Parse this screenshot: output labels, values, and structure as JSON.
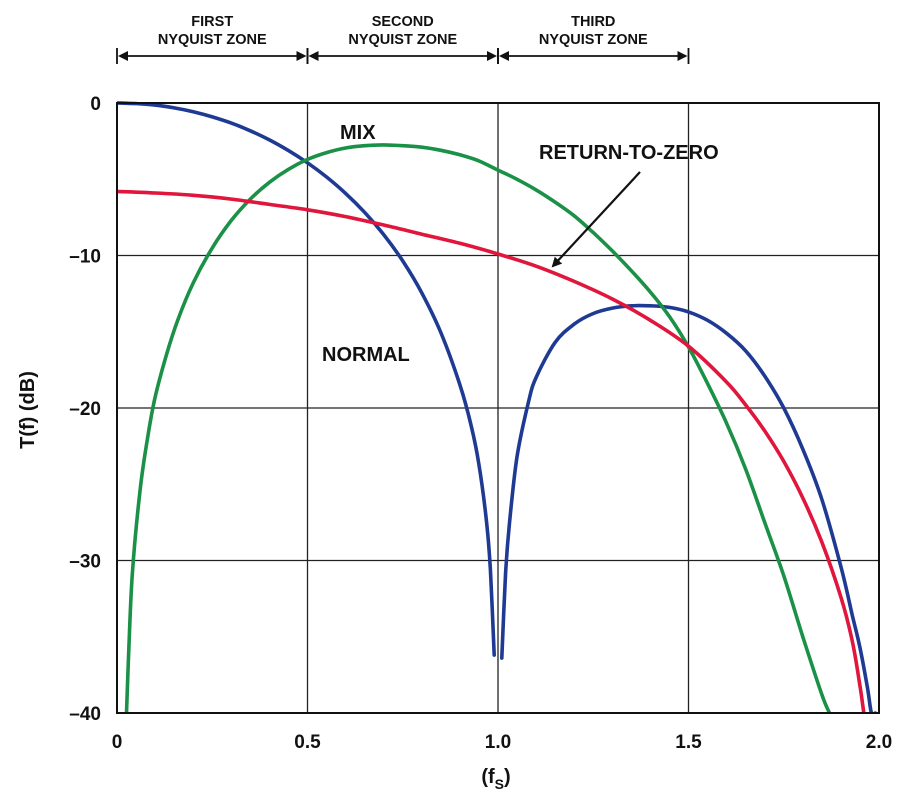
{
  "chart_data": {
    "type": "line",
    "xlabel": "(f",
    "xlabel_sub": "S",
    "xlabel_close": ")",
    "ylabel": "T(f) (dB)",
    "xlim": [
      0,
      2.0
    ],
    "ylim": [
      -40,
      0
    ],
    "grid": true,
    "x_ticks": [
      {
        "value": 0,
        "label": "0"
      },
      {
        "value": 0.5,
        "label": "0.5"
      },
      {
        "value": 1.0,
        "label": "1.0"
      },
      {
        "value": 1.5,
        "label": "1.5"
      },
      {
        "value": 2.0,
        "label": "2.0"
      }
    ],
    "y_ticks": [
      {
        "value": 0,
        "label": "0"
      },
      {
        "value": -10,
        "label": "–10"
      },
      {
        "value": -20,
        "label": "–20"
      },
      {
        "value": -30,
        "label": "–30"
      },
      {
        "value": -40,
        "label": "–40"
      }
    ],
    "zones": [
      {
        "line1": "FIRST",
        "line2": "NYQUIST ZONE",
        "from": 0,
        "to": 0.5
      },
      {
        "line1": "SECOND",
        "line2": "NYQUIST ZONE",
        "from": 0.5,
        "to": 1.0
      },
      {
        "line1": "THIRD",
        "line2": "NYQUIST ZONE",
        "from": 1.0,
        "to": 1.5
      }
    ],
    "series": [
      {
        "name": "NORMAL",
        "color": "#1f3a93",
        "segments": [
          {
            "x": [
              0,
              0.05,
              0.1,
              0.15,
              0.2,
              0.25,
              0.3,
              0.35,
              0.4,
              0.45,
              0.5,
              0.55,
              0.6,
              0.65,
              0.7,
              0.75,
              0.8,
              0.85,
              0.9,
              0.93,
              0.95,
              0.97,
              0.98,
              0.99
            ],
            "y": [
              0,
              -0.04,
              -0.14,
              -0.32,
              -0.58,
              -0.91,
              -1.32,
              -1.82,
              -2.42,
              -3.12,
              -3.92,
              -4.85,
              -5.93,
              -7.17,
              -8.63,
              -10.36,
              -12.45,
              -15.05,
              -18.48,
              -21.2,
              -23.7,
              -27.5,
              -30.6,
              -36.2
            ]
          },
          {
            "x": [
              1.01,
              1.02,
              1.03,
              1.05,
              1.08,
              1.1,
              1.15,
              1.2,
              1.25,
              1.3,
              1.35,
              1.4,
              1.45,
              1.5,
              1.55,
              1.6,
              1.65,
              1.7,
              1.75,
              1.8,
              1.85,
              1.9,
              1.93,
              1.95,
              1.97,
              1.98,
              1.99
            ],
            "y": [
              -36.4,
              -30.8,
              -27.6,
              -23.2,
              -19.6,
              -18.0,
              -15.7,
              -14.5,
              -13.8,
              -13.45,
              -13.3,
              -13.3,
              -13.4,
              -13.7,
              -14.25,
              -15.1,
              -16.25,
              -17.9,
              -20.0,
              -22.7,
              -26.0,
              -30.4,
              -33.6,
              -35.7,
              -38.4,
              -40.0,
              -40.0
            ]
          }
        ]
      },
      {
        "name": "MIX",
        "color": "#1a9146",
        "segments": [
          {
            "x": [
              0.025,
              0.03,
              0.04,
              0.06,
              0.08,
              0.1,
              0.13,
              0.16,
              0.2,
              0.25,
              0.3,
              0.35,
              0.4,
              0.45,
              0.5,
              0.55,
              0.6,
              0.65,
              0.7,
              0.75,
              0.8,
              0.85,
              0.9,
              0.95,
              1.0,
              1.05,
              1.1,
              1.15,
              1.2,
              1.25,
              1.3,
              1.35,
              1.4,
              1.45,
              1.5,
              1.55,
              1.6,
              1.65,
              1.7,
              1.75,
              1.8,
              1.85,
              1.87
            ],
            "y": [
              -40.0,
              -36.5,
              -31.0,
              -25.5,
              -22.0,
              -19.3,
              -16.5,
              -14.2,
              -11.8,
              -9.5,
              -7.7,
              -6.3,
              -5.2,
              -4.35,
              -3.7,
              -3.25,
              -2.95,
              -2.8,
              -2.75,
              -2.8,
              -2.9,
              -3.1,
              -3.4,
              -3.8,
              -4.4,
              -5.0,
              -5.7,
              -6.5,
              -7.4,
              -8.5,
              -9.7,
              -11.0,
              -12.4,
              -14.0,
              -16.0,
              -18.4,
              -21.0,
              -24.0,
              -27.5,
              -31.0,
              -35.0,
              -38.8,
              -40.0
            ]
          }
        ]
      },
      {
        "name": "RETURN-TO-ZERO",
        "color": "#e0163c",
        "segments": [
          {
            "x": [
              0,
              0.1,
              0.2,
              0.3,
              0.4,
              0.5,
              0.6,
              0.7,
              0.8,
              0.9,
              1.0,
              1.1,
              1.2,
              1.3,
              1.4,
              1.5,
              1.6,
              1.65,
              1.7,
              1.75,
              1.8,
              1.85,
              1.9,
              1.93,
              1.95,
              1.96
            ],
            "y": [
              -5.8,
              -5.9,
              -6.05,
              -6.3,
              -6.65,
              -7.0,
              -7.45,
              -8.0,
              -8.6,
              -9.2,
              -9.9,
              -10.7,
              -11.7,
              -12.85,
              -14.25,
              -15.95,
              -18.3,
              -19.8,
              -21.5,
              -23.5,
              -25.9,
              -28.8,
              -32.4,
              -35.3,
              -38.2,
              -40.0
            ]
          }
        ]
      }
    ],
    "annotations": [
      {
        "text": "MIX",
        "series": "MIX"
      },
      {
        "text": "RETURN-TO-ZERO",
        "series": "RETURN-TO-ZERO",
        "arrow": true
      },
      {
        "text": "NORMAL",
        "series": "NORMAL"
      }
    ]
  }
}
